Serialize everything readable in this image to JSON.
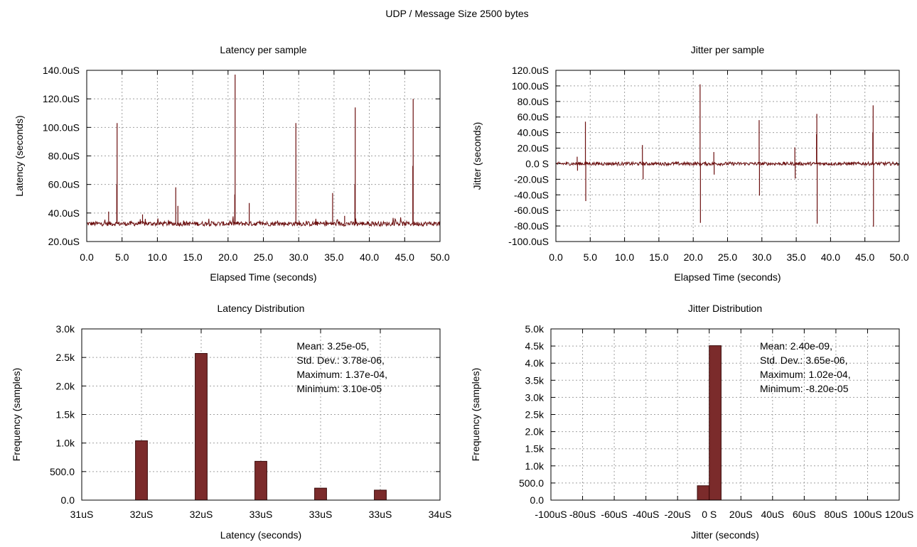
{
  "page": {
    "title": "UDP / Message Size 2500 bytes"
  },
  "colors": {
    "series": "#6b0f0f",
    "bar_fill": "#7b2b2b",
    "bar_stroke": "#3a0a0a",
    "grid": "#a0a0a0"
  },
  "chart_data": [
    {
      "id": "latency_per_sample",
      "type": "line",
      "title": "Latency per sample",
      "xlabel": "Elapsed Time (seconds)",
      "ylabel": "Latency (seconds)",
      "xlim": [
        0,
        50
      ],
      "ylim": [
        20,
        140
      ],
      "y_unit": "uS",
      "xticks": [
        "0.0",
        "5.0",
        "10.0",
        "15.0",
        "20.0",
        "25.0",
        "30.0",
        "35.0",
        "40.0",
        "45.0",
        "50.0"
      ],
      "yticks": [
        "20.0uS",
        "40.0uS",
        "60.0uS",
        "80.0uS",
        "100.0uS",
        "120.0uS",
        "140.0uS"
      ],
      "grid": true,
      "baseline": 32.5,
      "spikes": [
        {
          "x": 3.1,
          "y": 41
        },
        {
          "x": 4.3,
          "y": 103
        },
        {
          "x": 4.25,
          "y": 60
        },
        {
          "x": 7.9,
          "y": 39
        },
        {
          "x": 12.6,
          "y": 58
        },
        {
          "x": 12.9,
          "y": 45
        },
        {
          "x": 21.0,
          "y": 137
        },
        {
          "x": 20.95,
          "y": 53
        },
        {
          "x": 23.0,
          "y": 47
        },
        {
          "x": 29.6,
          "y": 103
        },
        {
          "x": 34.8,
          "y": 54
        },
        {
          "x": 36.5,
          "y": 38
        },
        {
          "x": 38.0,
          "y": 114
        },
        {
          "x": 37.95,
          "y": 60
        },
        {
          "x": 46.2,
          "y": 120
        },
        {
          "x": 46.15,
          "y": 73
        }
      ]
    },
    {
      "id": "jitter_per_sample",
      "type": "line",
      "title": "Jitter per sample",
      "xlabel": "Elapsed Time (seconds)",
      "ylabel": "Jitter (seconds)",
      "xlim": [
        0,
        50
      ],
      "ylim": [
        -100,
        120
      ],
      "y_unit": "uS",
      "xticks": [
        "0.0",
        "5.0",
        "10.0",
        "15.0",
        "20.0",
        "25.0",
        "30.0",
        "35.0",
        "40.0",
        "45.0",
        "50.0"
      ],
      "yticks": [
        "-100.0uS",
        "-80.0uS",
        "-60.0uS",
        "-40.0uS",
        "-20.0uS",
        "0.0 S",
        "20.0uS",
        "40.0uS",
        "60.0uS",
        "80.0uS",
        "100.0uS",
        "120.0uS"
      ],
      "grid": true,
      "baseline": 0,
      "spikes": [
        {
          "x": 3.1,
          "y": 9
        },
        {
          "x": 3.15,
          "y": -9
        },
        {
          "x": 4.3,
          "y": 54
        },
        {
          "x": 4.35,
          "y": -48
        },
        {
          "x": 12.6,
          "y": 24
        },
        {
          "x": 12.7,
          "y": -20
        },
        {
          "x": 21.0,
          "y": 102
        },
        {
          "x": 21.05,
          "y": -76
        },
        {
          "x": 23.0,
          "y": 15
        },
        {
          "x": 23.05,
          "y": -14
        },
        {
          "x": 29.6,
          "y": 56
        },
        {
          "x": 29.65,
          "y": -41
        },
        {
          "x": 34.8,
          "y": 21
        },
        {
          "x": 34.85,
          "y": -19
        },
        {
          "x": 38.0,
          "y": 64
        },
        {
          "x": 38.05,
          "y": -77
        },
        {
          "x": 37.95,
          "y": 38
        },
        {
          "x": 46.2,
          "y": 75
        },
        {
          "x": 46.25,
          "y": -81
        },
        {
          "x": 46.15,
          "y": 40
        }
      ]
    },
    {
      "id": "latency_distribution",
      "type": "bar",
      "title": "Latency Distribution",
      "xlabel": "Latency (seconds)",
      "ylabel": "Frequency (samples)",
      "xticks": [
        "31uS",
        "32uS",
        "32uS",
        "33uS",
        "33uS",
        "33uS",
        "34uS"
      ],
      "yticks": [
        "0.0",
        "500.0",
        "1.0k",
        "1.5k",
        "2.0k",
        "2.5k",
        "3.0k"
      ],
      "ylim": [
        0,
        3000
      ],
      "x_slot_range": [
        0,
        12
      ],
      "grid": true,
      "bars": [
        {
          "slot": 2,
          "value": 1040
        },
        {
          "slot": 4,
          "value": 2570
        },
        {
          "slot": 6,
          "value": 680
        },
        {
          "slot": 8,
          "value": 210
        },
        {
          "slot": 10,
          "value": 175
        }
      ],
      "stats": [
        "Mean: 3.25e-05,",
        "Std. Dev.: 3.78e-06,",
        "Maximum: 1.37e-04,",
        "Minimum: 3.10e-05"
      ]
    },
    {
      "id": "jitter_distribution",
      "type": "bar",
      "title": "Jitter Distribution",
      "xlabel": "Jitter (seconds)",
      "ylabel": "Frequency (samples)",
      "xlim": [
        -100,
        120
      ],
      "xticks": [
        "-100uS",
        "-80uS",
        "-60uS",
        "-40uS",
        "-20uS",
        "0 S",
        "20uS",
        "40uS",
        "60uS",
        "80uS",
        "100uS",
        "120uS"
      ],
      "yticks": [
        "0.0",
        "500.0",
        "1.0k",
        "1.5k",
        "2.0k",
        "2.5k",
        "3.0k",
        "3.5k",
        "4.0k",
        "4.5k",
        "5.0k"
      ],
      "ylim": [
        0,
        5000
      ],
      "grid": true,
      "bars": [
        {
          "x0": -7.5,
          "x1": 0,
          "value": 420
        },
        {
          "x0": 0,
          "x1": 7.5,
          "value": 4510
        }
      ],
      "stats": [
        "Mean: 2.40e-09,",
        "Std. Dev.: 3.65e-06,",
        "Maximum: 1.02e-04,",
        "Minimum: -8.20e-05"
      ]
    }
  ]
}
